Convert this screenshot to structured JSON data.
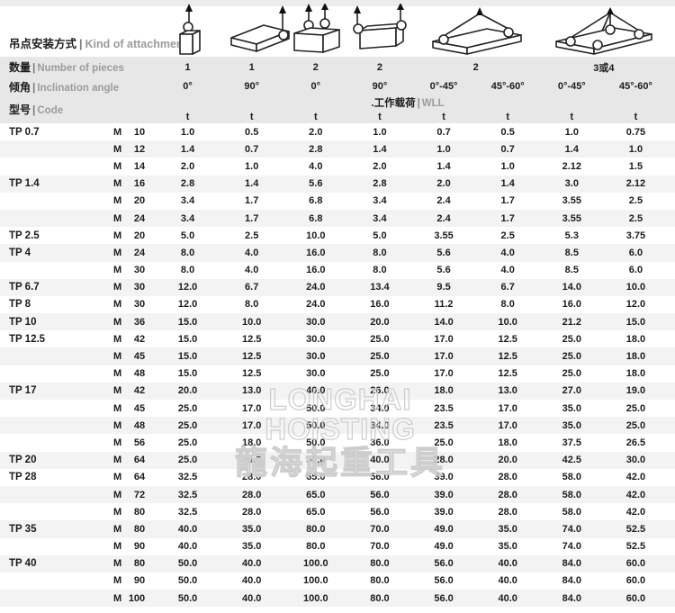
{
  "header": {
    "sep": "|",
    "attachment": {
      "zh": "吊点安装方式",
      "en": "Kind of attachment"
    },
    "pieces": {
      "zh": "数量",
      "en": "Number of pieces",
      "values": [
        "1",
        "1",
        "2",
        "2",
        "2",
        "3或4"
      ]
    },
    "angle": {
      "zh": "倾角",
      "en": "Inclination angle",
      "values": [
        "0°",
        "90°",
        "0°",
        "90°",
        "0°-45°",
        "45°-60°",
        "0°-45°",
        "45°-60°"
      ]
    },
    "code": {
      "zh": "型号",
      "en": "Code"
    },
    "wll": {
      "zh": ".工作载荷",
      "en": "WLL"
    },
    "unit": "t",
    "diagrams": [
      "single-point-axial",
      "single-point-side-90",
      "two-points-axial",
      "two-points-side-90",
      "two-leg-sling",
      "three-or-four-leg-sling"
    ]
  },
  "watermark": {
    "line1": "LONGHAI HOISTING",
    "line2": "龍海起重工具"
  },
  "table": {
    "rows": [
      {
        "code": "TP 0.7",
        "thread": "M",
        "size": "10",
        "wll": [
          "1.0",
          "0.5",
          "2.0",
          "1.0",
          "0.7",
          "0.5",
          "1.0",
          "0.75"
        ]
      },
      {
        "code": "",
        "thread": "M",
        "size": "12",
        "wll": [
          "1.4",
          "0.7",
          "2.8",
          "1.4",
          "1.0",
          "0.7",
          "1.4",
          "1.0"
        ]
      },
      {
        "code": "",
        "thread": "M",
        "size": "14",
        "wll": [
          "2.0",
          "1.0",
          "4.0",
          "2.0",
          "1.4",
          "1.0",
          "2.12",
          "1.5"
        ]
      },
      {
        "code": "TP 1.4",
        "thread": "M",
        "size": "16",
        "wll": [
          "2.8",
          "1.4",
          "5.6",
          "2.8",
          "2.0",
          "1.4",
          "3.0",
          "2.12"
        ]
      },
      {
        "code": "",
        "thread": "M",
        "size": "20",
        "wll": [
          "3.4",
          "1.7",
          "6.8",
          "3.4",
          "2.4",
          "1.7",
          "3.55",
          "2.5"
        ]
      },
      {
        "code": "",
        "thread": "M",
        "size": "24",
        "wll": [
          "3.4",
          "1.7",
          "6.8",
          "3.4",
          "2.4",
          "1.7",
          "3.55",
          "2.5"
        ]
      },
      {
        "code": "TP 2.5",
        "thread": "M",
        "size": "20",
        "wll": [
          "5.0",
          "2.5",
          "10.0",
          "5.0",
          "3.55",
          "2.5",
          "5.3",
          "3.75"
        ]
      },
      {
        "code": "TP 4",
        "thread": "M",
        "size": "24",
        "wll": [
          "8.0",
          "4.0",
          "16.0",
          "8.0",
          "5.6",
          "4.0",
          "8.5",
          "6.0"
        ]
      },
      {
        "code": "",
        "thread": "M",
        "size": "30",
        "wll": [
          "8.0",
          "4.0",
          "16.0",
          "8.0",
          "5.6",
          "4.0",
          "8.5",
          "6.0"
        ]
      },
      {
        "code": "TP 6.7",
        "thread": "M",
        "size": "30",
        "wll": [
          "12.0",
          "6.7",
          "24.0",
          "13.4",
          "9.5",
          "6.7",
          "14.0",
          "10.0"
        ]
      },
      {
        "code": "TP 8",
        "thread": "M",
        "size": "30",
        "wll": [
          "12.0",
          "8.0",
          "24.0",
          "16.0",
          "11.2",
          "8.0",
          "16.0",
          "12.0"
        ]
      },
      {
        "code": "TP 10",
        "thread": "M",
        "size": "36",
        "wll": [
          "15.0",
          "10.0",
          "30.0",
          "20.0",
          "14.0",
          "10.0",
          "21.2",
          "15.0"
        ]
      },
      {
        "code": "TP 12.5",
        "thread": "M",
        "size": "42",
        "wll": [
          "15.0",
          "12.5",
          "30.0",
          "25.0",
          "17.0",
          "12.5",
          "25.0",
          "18.0"
        ]
      },
      {
        "code": "",
        "thread": "M",
        "size": "45",
        "wll": [
          "15.0",
          "12.5",
          "30.0",
          "25.0",
          "17.0",
          "12.5",
          "25.0",
          "18.0"
        ]
      },
      {
        "code": "",
        "thread": "M",
        "size": "48",
        "wll": [
          "15.0",
          "12.5",
          "30.0",
          "25.0",
          "17.0",
          "12.5",
          "25.0",
          "18.0"
        ]
      },
      {
        "code": "TP 17",
        "thread": "M",
        "size": "42",
        "wll": [
          "20.0",
          "13.0",
          "40.0",
          "26.0",
          "18.0",
          "13.0",
          "27.0",
          "19.0"
        ]
      },
      {
        "code": "",
        "thread": "M",
        "size": "45",
        "wll": [
          "25.0",
          "17.0",
          "50.0",
          "34.0",
          "23.5",
          "17.0",
          "35.0",
          "25.0"
        ]
      },
      {
        "code": "",
        "thread": "M",
        "size": "48",
        "wll": [
          "25.0",
          "17.0",
          "50.0",
          "34.0",
          "23.5",
          "17.0",
          "35.0",
          "25.0"
        ]
      },
      {
        "code": "",
        "thread": "M",
        "size": "56",
        "wll": [
          "25.0",
          "18.0",
          "50.0",
          "36.0",
          "25.0",
          "18.0",
          "37.5",
          "26.5"
        ]
      },
      {
        "code": "TP 20",
        "thread": "M",
        "size": "64",
        "wll": [
          "25.0",
          "20.0",
          "50.0",
          "40.0",
          "28.0",
          "20.0",
          "42.5",
          "30.0"
        ]
      },
      {
        "code": "TP 28",
        "thread": "M",
        "size": "64",
        "wll": [
          "32.5",
          "28.0",
          "65.0",
          "56.0",
          "39.0",
          "28.0",
          "58.0",
          "42.0"
        ]
      },
      {
        "code": "",
        "thread": "M",
        "size": "72",
        "wll": [
          "32.5",
          "28.0",
          "65.0",
          "56.0",
          "39.0",
          "28.0",
          "58.0",
          "42.0"
        ]
      },
      {
        "code": "",
        "thread": "M",
        "size": "80",
        "wll": [
          "32.5",
          "28.0",
          "65.0",
          "56.0",
          "39.0",
          "28.0",
          "58.0",
          "42.0"
        ]
      },
      {
        "code": "TP 35",
        "thread": "M",
        "size": "80",
        "wll": [
          "40.0",
          "35.0",
          "80.0",
          "70.0",
          "49.0",
          "35.0",
          "74.0",
          "52.5"
        ]
      },
      {
        "code": "",
        "thread": "M",
        "size": "90",
        "wll": [
          "40.0",
          "35.0",
          "80.0",
          "70.0",
          "49.0",
          "35.0",
          "74.0",
          "52.5"
        ]
      },
      {
        "code": "TP 40",
        "thread": "M",
        "size": "80",
        "wll": [
          "50.0",
          "40.0",
          "100.0",
          "80.0",
          "56.0",
          "40.0",
          "84.0",
          "60.0"
        ]
      },
      {
        "code": "",
        "thread": "M",
        "size": "90",
        "wll": [
          "50.0",
          "40.0",
          "100.0",
          "80.0",
          "56.0",
          "40.0",
          "84.0",
          "60.0"
        ]
      },
      {
        "code": "",
        "thread": "M",
        "size": "100",
        "wll": [
          "50.0",
          "40.0",
          "100.0",
          "80.0",
          "56.0",
          "40.0",
          "84.0",
          "60.0"
        ]
      }
    ]
  }
}
